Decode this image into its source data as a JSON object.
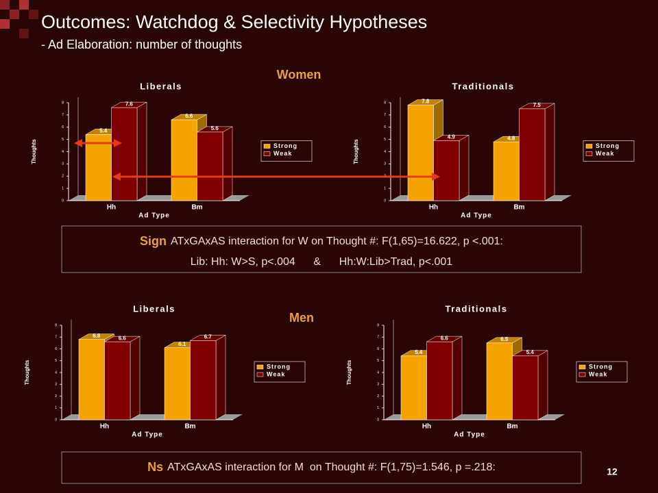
{
  "slide": {
    "title": "Outcomes: Watchdog & Selectivity Hypotheses",
    "subtitle": "- Ad Elaboration: number of thoughts",
    "women_heading": "Women",
    "men_heading": "Men",
    "women_note": {
      "lead": "Sign",
      "line1": "ATxGAxAS interaction for W on Thought #: F(1,65)=16.622, p <.001:",
      "line2": "Lib: Hh: W>S, p<.004      &      Hh:W:Lib>Trad, p<.001"
    },
    "men_note": {
      "lead": "Ns",
      "line1": "ATxGAxAS interaction for M  on Thought #: F(1,75)=1.546, p =.218:"
    },
    "page_number": "12"
  },
  "chart_data": [
    {
      "type": "bar",
      "title": "Liberals",
      "categories": [
        "Hh",
        "Bm"
      ],
      "x_label": "Ad Type",
      "y_label": "Thoughts",
      "series": [
        {
          "name": "Strong",
          "color": "#f5a300",
          "values": [
            5.4,
            6.6
          ]
        },
        {
          "name": "Weak",
          "color": "#800000",
          "values": [
            7.6,
            5.6
          ]
        }
      ],
      "ylim": [
        0,
        8
      ],
      "yticks": [
        0,
        1,
        2,
        3,
        4,
        5,
        6,
        7,
        8
      ]
    },
    {
      "type": "bar",
      "title": "Traditionals",
      "categories": [
        "Hh",
        "Bm"
      ],
      "x_label": "Ad Type",
      "y_label": "Thoughts",
      "series": [
        {
          "name": "Strong",
          "color": "#f5a300",
          "values": [
            7.8,
            4.8
          ]
        },
        {
          "name": "Weak",
          "color": "#800000",
          "values": [
            4.9,
            7.5
          ]
        }
      ],
      "ylim": [
        0,
        8
      ],
      "yticks": [
        0,
        1,
        2,
        3,
        4,
        5,
        6,
        7,
        8
      ]
    },
    {
      "type": "bar",
      "title": "Liberals",
      "categories": [
        "Hh",
        "Bm"
      ],
      "x_label": "Ad Type",
      "y_label": "Thoughts",
      "series": [
        {
          "name": "Strong",
          "color": "#f5a300",
          "values": [
            6.8,
            6.1
          ]
        },
        {
          "name": "Weak",
          "color": "#800000",
          "values": [
            6.6,
            6.7
          ]
        }
      ],
      "ylim": [
        0,
        8
      ],
      "yticks": [
        0,
        1,
        2,
        3,
        4,
        5,
        6,
        7,
        8
      ]
    },
    {
      "type": "bar",
      "title": "Traditionals",
      "categories": [
        "Hh",
        "Bm"
      ],
      "x_label": "Ad Type",
      "y_label": "Thoughts",
      "series": [
        {
          "name": "Strong",
          "color": "#f5a300",
          "values": [
            5.4,
            6.5
          ]
        },
        {
          "name": "Weak",
          "color": "#800000",
          "values": [
            6.6,
            5.4
          ]
        }
      ],
      "ylim": [
        0,
        8
      ],
      "yticks": [
        0,
        1,
        2,
        3,
        4,
        5,
        6,
        7,
        8
      ]
    }
  ]
}
